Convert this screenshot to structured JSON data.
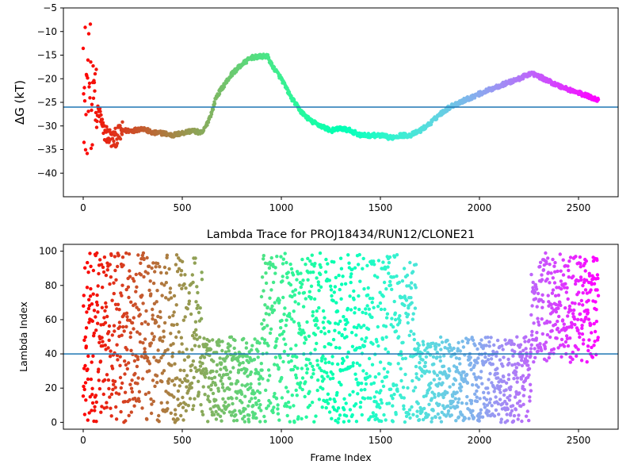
{
  "chart_data": [
    {
      "type": "scatter",
      "title": "",
      "xlabel": "",
      "ylabel": "ΔG (kT)",
      "xlim": [
        -100,
        2700
      ],
      "ylim": [
        -45,
        -5
      ],
      "xticks": [
        0,
        500,
        1000,
        1500,
        2000,
        2500
      ],
      "yticks": [
        -40,
        -35,
        -30,
        -25,
        -20,
        -15,
        -10,
        -5
      ],
      "hline": -26,
      "hline_color": "#1f77b4",
      "colormap": "rainbow (red at early frames to violet at late frames)",
      "x_max_frame": 2600,
      "keypoints": [
        [
          0,
          -10
        ],
        [
          10,
          -30
        ],
        [
          20,
          -8
        ],
        [
          30,
          -20
        ],
        [
          40,
          -28
        ],
        [
          50,
          -32
        ],
        [
          60,
          -28
        ],
        [
          80,
          -27
        ],
        [
          100,
          -31
        ],
        [
          150,
          -33
        ],
        [
          200,
          -31
        ],
        [
          250,
          -31
        ],
        [
          300,
          -30.5
        ],
        [
          350,
          -31.5
        ],
        [
          400,
          -31.5
        ],
        [
          450,
          -32
        ],
        [
          500,
          -31.5
        ],
        [
          550,
          -31
        ],
        [
          600,
          -31.5
        ],
        [
          620,
          -30
        ],
        [
          650,
          -27
        ],
        [
          670,
          -24
        ],
        [
          700,
          -22
        ],
        [
          750,
          -19
        ],
        [
          800,
          -17
        ],
        [
          850,
          -15.5
        ],
        [
          900,
          -15.3
        ],
        [
          930,
          -15.2
        ],
        [
          950,
          -17
        ],
        [
          1000,
          -20
        ],
        [
          1050,
          -24
        ],
        [
          1100,
          -27
        ],
        [
          1150,
          -29
        ],
        [
          1200,
          -30
        ],
        [
          1250,
          -31
        ],
        [
          1300,
          -30.5
        ],
        [
          1350,
          -31
        ],
        [
          1400,
          -32
        ],
        [
          1450,
          -32
        ],
        [
          1500,
          -32
        ],
        [
          1550,
          -32.5
        ],
        [
          1600,
          -32
        ],
        [
          1650,
          -32
        ],
        [
          1700,
          -31
        ],
        [
          1750,
          -29.5
        ],
        [
          1800,
          -27.5
        ],
        [
          1850,
          -26
        ],
        [
          1900,
          -25
        ],
        [
          2000,
          -23.2
        ],
        [
          2100,
          -21.5
        ],
        [
          2200,
          -20
        ],
        [
          2260,
          -18.8
        ],
        [
          2300,
          -19.5
        ],
        [
          2400,
          -21.5
        ],
        [
          2500,
          -23
        ],
        [
          2600,
          -24.5
        ]
      ]
    },
    {
      "type": "scatter",
      "title": "Lambda Trace for PROJ18434/RUN12/CLONE21",
      "xlabel": "Frame Index",
      "ylabel": "Lambda Index",
      "xlim": [
        -100,
        2700
      ],
      "ylim": [
        -4,
        104
      ],
      "xticks": [
        0,
        500,
        1000,
        1500,
        2000,
        2500
      ],
      "yticks": [
        0,
        20,
        40,
        60,
        80,
        100
      ],
      "hline": 40,
      "hline_color": "#1f77b4",
      "colormap": "rainbow (red at early frames to violet at late frames)",
      "x_max_frame": 2600,
      "segments": [
        {
          "x": [
            0,
            600
          ],
          "y": [
            0,
            99
          ]
        },
        {
          "x": [
            600,
            900
          ],
          "y": [
            0,
            50
          ]
        },
        {
          "x": [
            900,
            1680
          ],
          "y": [
            0,
            99
          ]
        },
        {
          "x": [
            1680,
            2260
          ],
          "y": [
            0,
            50
          ]
        },
        {
          "x": [
            2260,
            2600
          ],
          "y": [
            35,
            99
          ]
        }
      ]
    }
  ]
}
